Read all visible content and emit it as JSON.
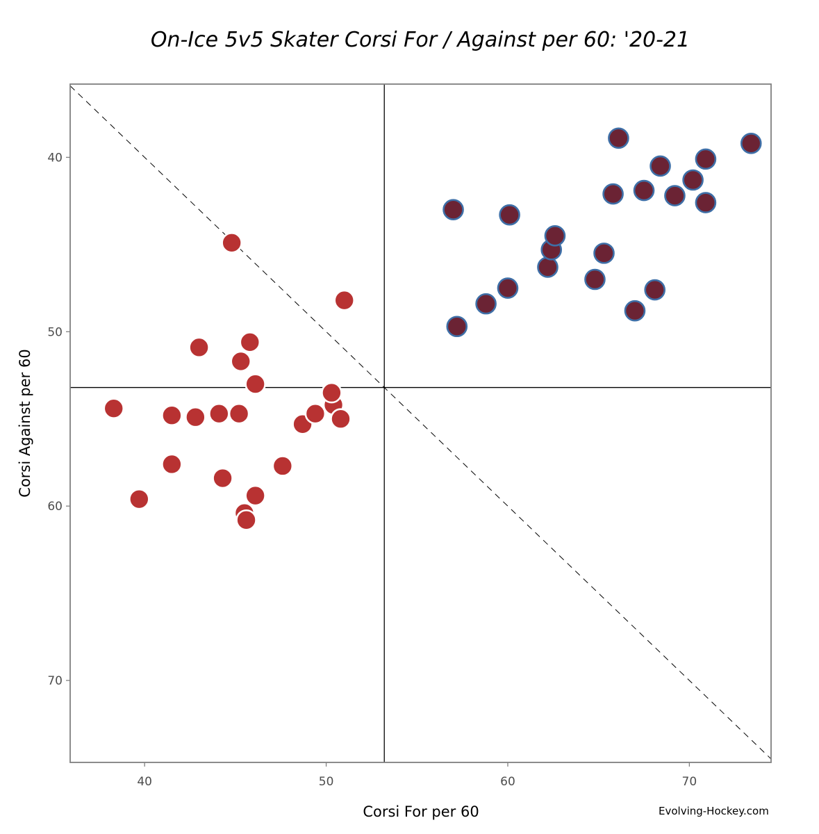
{
  "chart_data": {
    "type": "scatter",
    "title": "On-Ice 5v5 Skater Corsi For / Against per 60: '20-21",
    "xlabel": "Corsi For per 60",
    "ylabel": "Corsi Against per 60",
    "xlim": [
      35.9,
      74.5
    ],
    "ylim": [
      35.8,
      74.7
    ],
    "y_reversed": true,
    "x_ticks": [
      40,
      50,
      60,
      70
    ],
    "y_ticks": [
      40,
      50,
      60,
      70
    ],
    "grid": false,
    "reference_lines": {
      "vline_x": 53.2,
      "hline_y": 53.2,
      "diagonal": "y = x (dashed)"
    },
    "colors": {
      "negative_fill": "#B83232",
      "negative_stroke": "#ffffff",
      "positive_fill": "#6B2334",
      "positive_stroke": "#3E6FA7",
      "frame": "#808080"
    },
    "series": [
      {
        "points": [
          {
            "x": 38.3,
            "y": 54.4
          },
          {
            "x": 39.7,
            "y": 59.6
          },
          {
            "x": 41.5,
            "y": 54.8
          },
          {
            "x": 41.5,
            "y": 57.6
          },
          {
            "x": 42.8,
            "y": 54.9
          },
          {
            "x": 43.0,
            "y": 50.9
          },
          {
            "x": 44.1,
            "y": 54.7
          },
          {
            "x": 44.3,
            "y": 58.4
          },
          {
            "x": 44.8,
            "y": 44.9
          },
          {
            "x": 45.2,
            "y": 54.7
          },
          {
            "x": 45.3,
            "y": 51.7
          },
          {
            "x": 45.5,
            "y": 60.4
          },
          {
            "x": 45.6,
            "y": 60.8
          },
          {
            "x": 45.8,
            "y": 50.6
          },
          {
            "x": 46.1,
            "y": 53.0
          },
          {
            "x": 46.1,
            "y": 59.4
          },
          {
            "x": 47.6,
            "y": 57.7
          },
          {
            "x": 48.7,
            "y": 55.3
          },
          {
            "x": 49.4,
            "y": 54.7
          },
          {
            "x": 50.4,
            "y": 54.2
          },
          {
            "x": 50.3,
            "y": 53.5
          },
          {
            "x": 50.8,
            "y": 55.0
          },
          {
            "x": 51.0,
            "y": 48.2
          }
        ]
      },
      {
        "points": [
          {
            "x": 57.0,
            "y": 43.0
          },
          {
            "x": 57.2,
            "y": 49.7
          },
          {
            "x": 58.8,
            "y": 48.4
          },
          {
            "x": 60.0,
            "y": 47.5
          },
          {
            "x": 60.1,
            "y": 43.3
          },
          {
            "x": 62.2,
            "y": 46.3
          },
          {
            "x": 62.4,
            "y": 45.3
          },
          {
            "x": 62.6,
            "y": 44.5
          },
          {
            "x": 64.8,
            "y": 47.0
          },
          {
            "x": 65.3,
            "y": 45.5
          },
          {
            "x": 65.8,
            "y": 42.1
          },
          {
            "x": 66.1,
            "y": 38.9
          },
          {
            "x": 67.0,
            "y": 48.8
          },
          {
            "x": 67.5,
            "y": 41.9
          },
          {
            "x": 68.1,
            "y": 47.6
          },
          {
            "x": 68.4,
            "y": 40.5
          },
          {
            "x": 69.2,
            "y": 42.2
          },
          {
            "x": 70.2,
            "y": 41.3
          },
          {
            "x": 70.9,
            "y": 42.6
          },
          {
            "x": 70.9,
            "y": 40.1
          },
          {
            "x": 73.4,
            "y": 39.2
          }
        ]
      }
    ]
  },
  "watermark": "Evolving-Hockey.com"
}
